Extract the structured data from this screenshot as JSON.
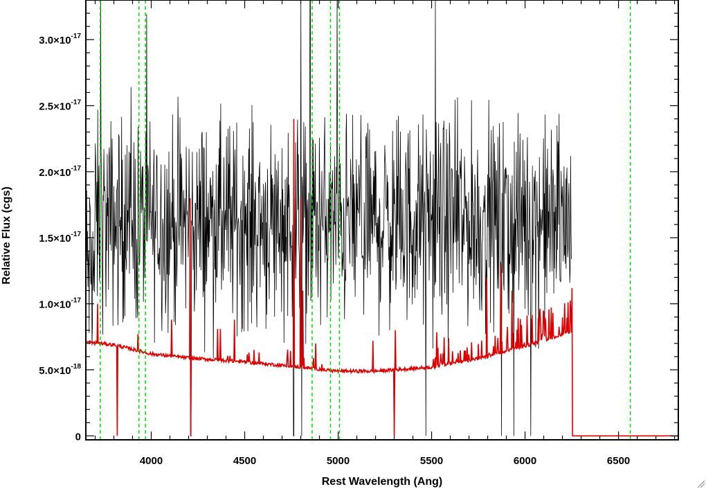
{
  "chart_data": {
    "type": "line",
    "xlabel": "Rest Wavelength (Ang)",
    "ylabel": "Relative Flux (cgs)",
    "xlim": [
      3650,
      6820
    ],
    "ylim": [
      -3e-19,
      3.3e-17
    ],
    "x_ticks": [
      {
        "value": 4000,
        "label": "4000"
      },
      {
        "value": 4500,
        "label": "4500"
      },
      {
        "value": 5000,
        "label": "5000"
      },
      {
        "value": 5500,
        "label": "5500"
      },
      {
        "value": 6000,
        "label": "6000"
      },
      {
        "value": 6500,
        "label": "6500"
      }
    ],
    "y_ticks": [
      {
        "value": 0,
        "mantissa": "0",
        "exponent": ""
      },
      {
        "value": 5e-18,
        "mantissa": "5.0×10",
        "exponent": "-18"
      },
      {
        "value": 1e-17,
        "mantissa": "1.0×10",
        "exponent": "-17"
      },
      {
        "value": 1.5e-17,
        "mantissa": "1.5×10",
        "exponent": "-17"
      },
      {
        "value": 2e-17,
        "mantissa": "2.0×10",
        "exponent": "-17"
      },
      {
        "value": 2.5e-17,
        "mantissa": "2.5×10",
        "exponent": "-17"
      },
      {
        "value": 3e-17,
        "mantissa": "3.0×10",
        "exponent": "-17"
      }
    ],
    "minor_y_step": 1e-18,
    "minor_x_step": 100,
    "grid": false,
    "reference_lines": {
      "color": "#00dd00",
      "style": "dashed",
      "x": [
        3727,
        3934,
        3969,
        4861,
        4959,
        5007,
        6563
      ]
    },
    "series": [
      {
        "color": "#000000",
        "description": "observed spectrum (noisy)",
        "x_range": [
          3650,
          6250
        ],
        "mean": 1.62e-17,
        "noise": 3.8e-18,
        "spikes": [
          {
            "x": 3730,
            "y": 3.4e-17
          },
          {
            "x": 4212,
            "y": 0.0
          },
          {
            "x": 4760,
            "y": 3.4e-17
          },
          {
            "x": 4762,
            "y": 0.0
          },
          {
            "x": 4800,
            "y": 3.4e-17
          },
          {
            "x": 4805,
            "y": 0.0
          },
          {
            "x": 4850,
            "y": 3.4e-17
          },
          {
            "x": 4995,
            "y": 3.4e-17
          },
          {
            "x": 5470,
            "y": 0.0
          },
          {
            "x": 5520,
            "y": 3.4e-17
          },
          {
            "x": 5875,
            "y": 0.0
          },
          {
            "x": 5940,
            "y": 0.0
          },
          {
            "x": 6030,
            "y": 0.0
          }
        ]
      },
      {
        "color": "#dd0000",
        "description": "error / model spectrum",
        "continuum": [
          {
            "x": 3650,
            "y": 7.1e-18
          },
          {
            "x": 3800,
            "y": 6.9e-18
          },
          {
            "x": 4000,
            "y": 6.2e-18
          },
          {
            "x": 4200,
            "y": 5.9e-18
          },
          {
            "x": 4500,
            "y": 5.6e-18
          },
          {
            "x": 4800,
            "y": 5.2e-18
          },
          {
            "x": 5000,
            "y": 4.9e-18
          },
          {
            "x": 5200,
            "y": 4.9e-18
          },
          {
            "x": 5500,
            "y": 5.2e-18
          },
          {
            "x": 5800,
            "y": 6e-18
          },
          {
            "x": 6000,
            "y": 6.8e-18
          },
          {
            "x": 6250,
            "y": 7.9e-18
          },
          {
            "x": 6252,
            "y": 0.0
          },
          {
            "x": 6820,
            "y": 0.0
          }
        ],
        "spikes": [
          {
            "x": 3712,
            "y": 1e-17
          },
          {
            "x": 3818,
            "y": 0.0
          },
          {
            "x": 3930,
            "y": 7.7e-18
          },
          {
            "x": 4208,
            "y": 1.8e-17
          },
          {
            "x": 4210,
            "y": 0.0
          },
          {
            "x": 4110,
            "y": 8.8e-18
          },
          {
            "x": 4355,
            "y": 8.1e-18
          },
          {
            "x": 4370,
            "y": 8.1e-18
          },
          {
            "x": 4445,
            "y": 8.8e-18
          },
          {
            "x": 4762,
            "y": 2.4e-17
          },
          {
            "x": 4800,
            "y": 1.8e-17
          },
          {
            "x": 4810,
            "y": 1.1e-17
          },
          {
            "x": 4880,
            "y": 7e-18
          },
          {
            "x": 5185,
            "y": 7.2e-18
          },
          {
            "x": 5300,
            "y": 0.0
          },
          {
            "x": 5305,
            "y": 8e-18
          },
          {
            "x": 5795,
            "y": 1.2e-17
          },
          {
            "x": 5870,
            "y": 1.3e-17
          },
          {
            "x": 5930,
            "y": 1.1e-17
          },
          {
            "x": 6250,
            "y": 1.12e-17
          }
        ]
      }
    ]
  }
}
